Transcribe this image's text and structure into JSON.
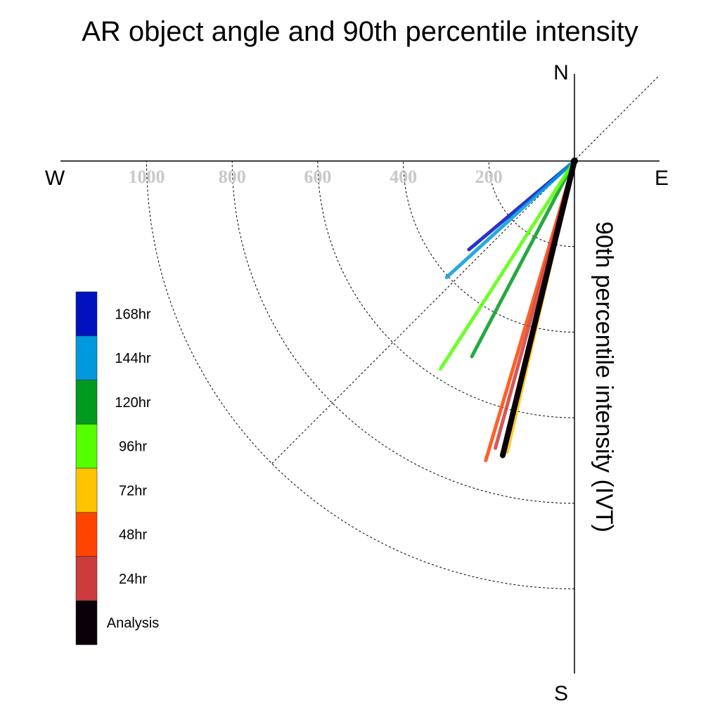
{
  "chart_data": {
    "type": "polar-vector",
    "title": "AR object angle and 90th percentile intensity",
    "radial_label": "90th percentile intensity (IVT)",
    "compass": {
      "north": "N",
      "south": "S",
      "east": "E",
      "west": "W"
    },
    "radial_ticks": [
      200,
      400,
      600,
      800,
      1000
    ],
    "radial_tick_labels": [
      "200",
      "400",
      "600",
      "800",
      "1000"
    ],
    "rmax": 1200,
    "grid": true,
    "legend_placement": "bottom-left",
    "series": [
      {
        "name": "168hr",
        "color": "#0011c0",
        "vectors": [
          {
            "angle": 230.0,
            "intensity": 322
          }
        ]
      },
      {
        "name": "144hr",
        "color": "#0099dd",
        "vectors": [
          {
            "angle": 227.7,
            "intensity": 404
          }
        ]
      },
      {
        "name": "120hr",
        "color": "#009a1e",
        "vectors": [
          {
            "angle": 207.7,
            "intensity": 516
          }
        ]
      },
      {
        "name": "96hr",
        "color": "#55ff00",
        "vectors": [
          {
            "angle": 212.8,
            "intensity": 578
          }
        ]
      },
      {
        "name": "72hr",
        "color": "#ffc400",
        "vectors": [
          {
            "angle": 193.0,
            "intensity": 698
          }
        ]
      },
      {
        "name": "48hr",
        "color": "#ff4400",
        "vectors": [
          {
            "angle": 196.5,
            "intensity": 730
          }
        ]
      },
      {
        "name": "24hr",
        "color": "#cc3c3c",
        "vectors": [
          {
            "angle": 195.4,
            "intensity": 696
          }
        ]
      },
      {
        "name": "Analysis",
        "color": "#0a0008",
        "vectors": [
          {
            "angle": 193.7,
            "intensity": 708
          }
        ]
      }
    ]
  }
}
